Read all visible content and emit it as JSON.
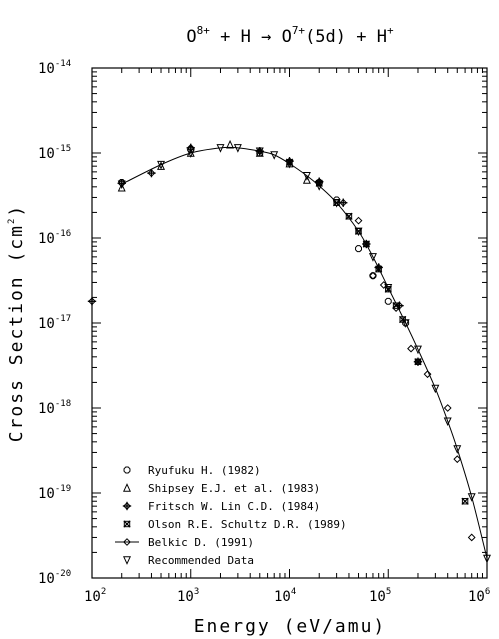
{
  "chart_data": {
    "type": "scatter",
    "title": {
      "parts": [
        {
          "text": "O",
          "sup": "8+"
        },
        {
          "text": " + H → O",
          "sup": "7+"
        },
        {
          "text": "(5d) + H",
          "sup": "+"
        }
      ]
    },
    "xlabel": "Energy (eV/amu)",
    "ylabel": {
      "prefix": "Cross Section (cm",
      "sup": "2",
      "suffix": ")"
    },
    "x_scale": "log",
    "y_scale": "log",
    "xlim": [
      100,
      1000000
    ],
    "ylim": [
      1e-20,
      1e-14
    ],
    "x_ticks": [
      {
        "base": "10",
        "exp": "2",
        "value": 100
      },
      {
        "base": "10",
        "exp": "3",
        "value": 1000
      },
      {
        "base": "10",
        "exp": "4",
        "value": 10000
      },
      {
        "base": "10",
        "exp": "5",
        "value": 100000
      },
      {
        "base": "10",
        "exp": "6",
        "value": 1000000
      }
    ],
    "y_ticks": [
      {
        "base": "10",
        "exp": "-20",
        "value": 1e-20
      },
      {
        "base": "10",
        "exp": "-19",
        "value": 1e-19
      },
      {
        "base": "10",
        "exp": "-18",
        "value": 1e-18
      },
      {
        "base": "10",
        "exp": "-17",
        "value": 1e-17
      },
      {
        "base": "10",
        "exp": "-16",
        "value": 1e-16
      },
      {
        "base": "10",
        "exp": "-15",
        "value": 1e-15
      },
      {
        "base": "10",
        "exp": "-14",
        "value": 1e-14
      }
    ],
    "grid": false,
    "legend_position": "bottom-left",
    "series": [
      {
        "name": "Ryufuku H. (1982)",
        "marker": "octagon",
        "points": [
          [
            200,
            4.5e-16
          ],
          [
            1000,
            1.1e-15
          ],
          [
            5000,
            1e-15
          ],
          [
            20000,
            4.5e-16
          ],
          [
            30000,
            2.8e-16
          ],
          [
            50000,
            7.5e-17
          ],
          [
            70000,
            3.6e-17
          ],
          [
            100000,
            1.8e-17
          ],
          [
            150000,
            1e-17
          ]
        ]
      },
      {
        "name": "Shipsey E.J. et al. (1983)",
        "marker": "triangle-up",
        "points": [
          [
            200,
            3.9e-16
          ],
          [
            500,
            7e-16
          ],
          [
            1000,
            1e-15
          ],
          [
            2500,
            1.25e-15
          ],
          [
            5000,
            1e-15
          ],
          [
            10000,
            7.5e-16
          ],
          [
            15000,
            4.8e-16
          ]
        ]
      },
      {
        "name": "Fritsch W. Lin C.D. (1984)",
        "marker": "plus-diamond",
        "points": [
          [
            100,
            1.8e-17
          ],
          [
            200,
            4.4e-16
          ],
          [
            400,
            5.8e-16
          ],
          [
            1000,
            1.15e-15
          ],
          [
            5000,
            1.05e-15
          ],
          [
            10000,
            8e-16
          ],
          [
            20000,
            4.6e-16
          ],
          [
            35000,
            2.6e-16
          ],
          [
            60000,
            8.5e-17
          ],
          [
            80000,
            4.5e-17
          ],
          [
            130000,
            1.6e-17
          ],
          [
            200000,
            3.5e-18
          ]
        ]
      },
      {
        "name": "Olson R.E. Schultz D.R. (1989)",
        "marker": "x-box",
        "points": [
          [
            10000,
            7.8e-16
          ],
          [
            20000,
            4.4e-16
          ],
          [
            30000,
            2.6e-16
          ],
          [
            40000,
            1.8e-16
          ],
          [
            50000,
            1.2e-16
          ],
          [
            60000,
            8.5e-17
          ],
          [
            80000,
            4.3e-17
          ],
          [
            100000,
            2.5e-17
          ],
          [
            120000,
            1.6e-17
          ],
          [
            140000,
            1.1e-17
          ],
          [
            200000,
            3.5e-18
          ],
          [
            600000,
            8e-20
          ]
        ]
      },
      {
        "name": "Belkic D. (1991)",
        "marker": "diamond",
        "points": [
          [
            50000,
            1.6e-16
          ],
          [
            70000,
            3.6e-17
          ],
          [
            90000,
            2.8e-17
          ],
          [
            120000,
            1.5e-17
          ],
          [
            170000,
            5e-18
          ],
          [
            250000,
            2.5e-18
          ],
          [
            400000,
            1e-18
          ],
          [
            500000,
            2.5e-19
          ],
          [
            700000,
            3e-20
          ]
        ]
      },
      {
        "name": "Recommended Data",
        "marker": "triangle-down",
        "line": true,
        "points": [
          [
            200,
            4.3e-16
          ],
          [
            500,
            7.3e-16
          ],
          [
            1000,
            1e-15
          ],
          [
            2000,
            1.15e-15
          ],
          [
            3000,
            1.15e-15
          ],
          [
            5000,
            1.05e-15
          ],
          [
            7000,
            9.5e-16
          ],
          [
            10000,
            7.5e-16
          ],
          [
            15000,
            5.4e-16
          ],
          [
            20000,
            4.1e-16
          ],
          [
            30000,
            2.6e-16
          ],
          [
            50000,
            1.2e-16
          ],
          [
            70000,
            6e-17
          ],
          [
            100000,
            2.6e-17
          ],
          [
            150000,
            1e-17
          ],
          [
            200000,
            4.9e-18
          ],
          [
            300000,
            1.7e-18
          ],
          [
            400000,
            7e-19
          ],
          [
            500000,
            3.3e-19
          ],
          [
            700000,
            9e-20
          ],
          [
            1000000,
            1.7e-20
          ]
        ]
      }
    ]
  }
}
